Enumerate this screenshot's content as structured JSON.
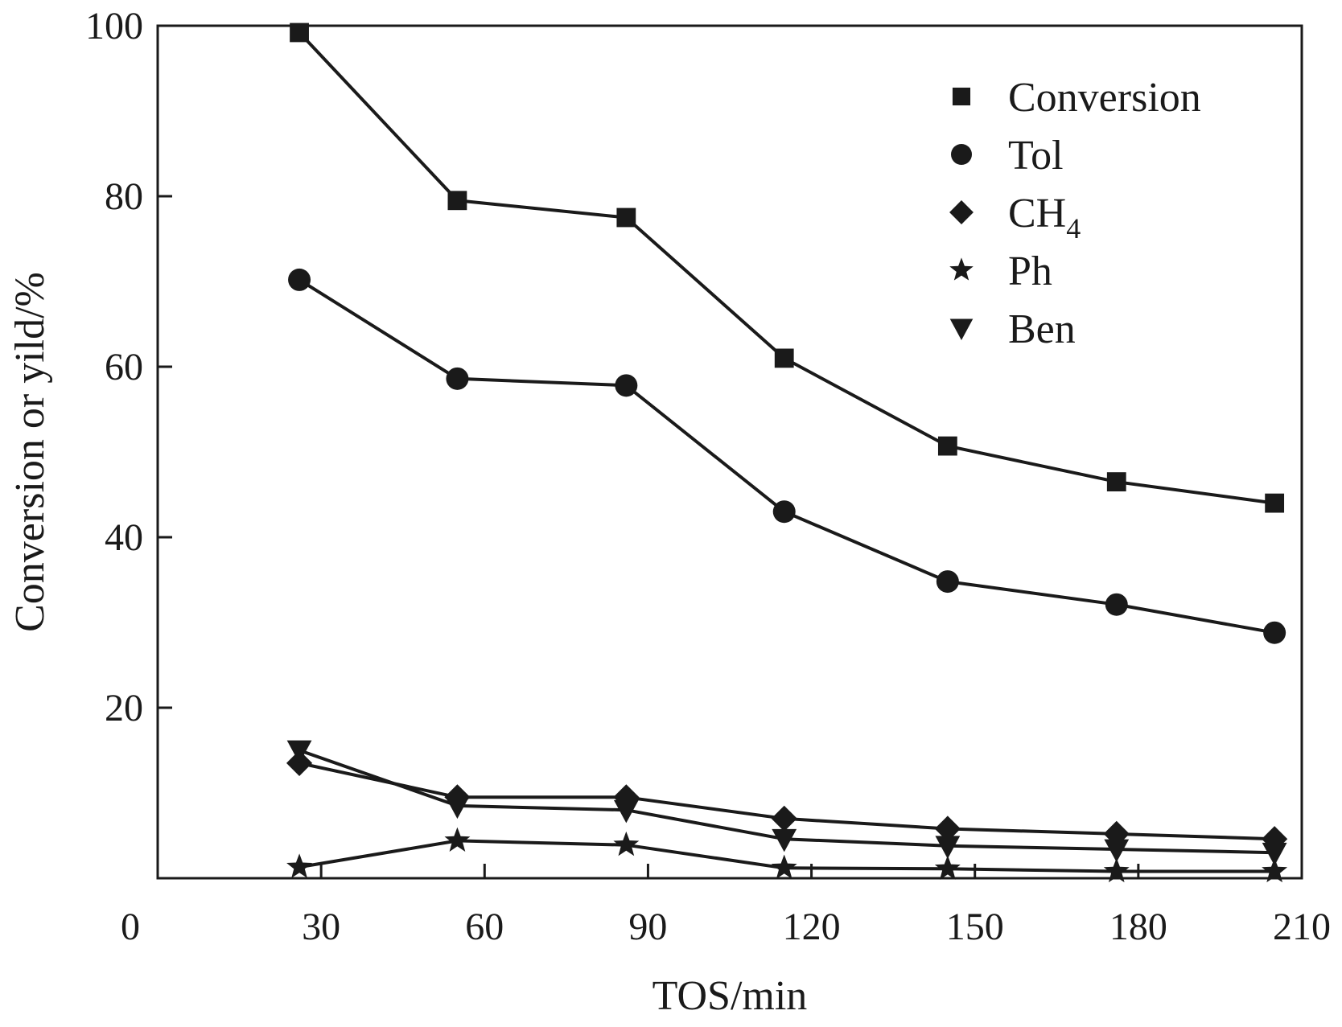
{
  "chart_data": {
    "type": "line",
    "title": "",
    "xlabel": "TOS/min",
    "ylabel": "Conversion or yild/%",
    "xlim": [
      0,
      210
    ],
    "ylim": [
      0,
      100
    ],
    "x_ticks": [
      30,
      60,
      90,
      120,
      150,
      180,
      210
    ],
    "x_origin_label": "0",
    "y_ticks": [
      20,
      40,
      60,
      80,
      100
    ],
    "grid": false,
    "legend_position": "top-right",
    "x": [
      26,
      55,
      86,
      115,
      145,
      176,
      205
    ],
    "series": [
      {
        "name": "Conversion",
        "marker": "square",
        "values": [
          99.2,
          79.5,
          77.5,
          61,
          50.7,
          46.5,
          44
        ]
      },
      {
        "name": "Tol",
        "marker": "circle",
        "values": [
          70.2,
          58.6,
          57.8,
          43,
          34.8,
          32.1,
          28.8
        ]
      },
      {
        "name": "CH",
        "sub": "4",
        "marker": "diamond",
        "values": [
          13.5,
          9.5,
          9.5,
          7.0,
          5.8,
          5.2,
          4.6
        ]
      },
      {
        "name": "Ph",
        "marker": "star",
        "values": [
          1.3,
          4.4,
          3.9,
          1.2,
          1.1,
          0.8,
          0.8
        ]
      },
      {
        "name": "Ben",
        "marker": "triangle-down",
        "values": [
          15.0,
          8.5,
          8.0,
          4.6,
          3.8,
          3.4,
          3.0
        ]
      }
    ]
  },
  "colors": {
    "ink": "#1a1a1a",
    "background": "#ffffff"
  }
}
